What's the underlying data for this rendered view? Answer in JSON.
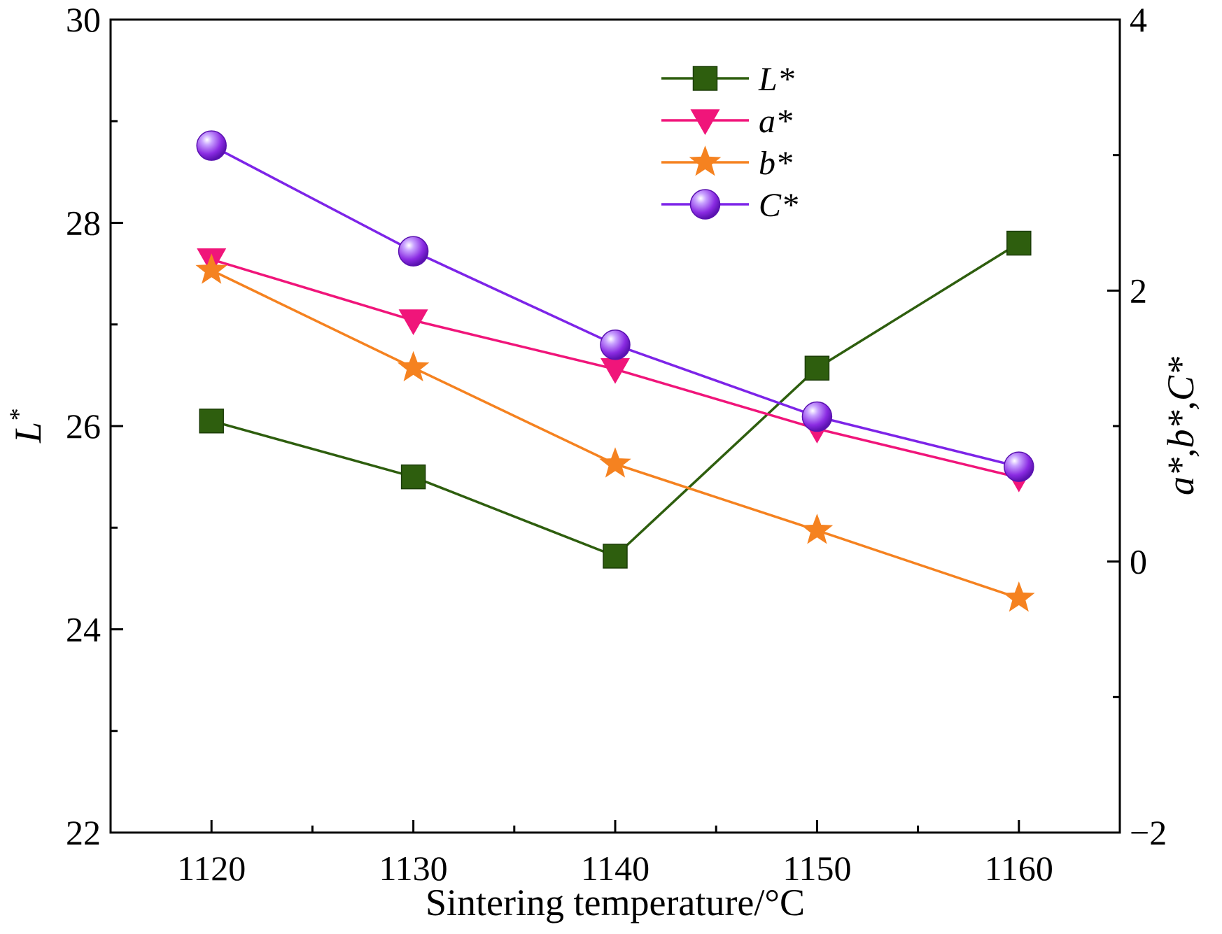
{
  "chart_data": {
    "type": "line",
    "xlabel": "Sintering temperature/°C",
    "ylabel_left": "L",
    "ylabel_left_sup": "*",
    "ylabel_right": "a*,b*,C*",
    "x": [
      1120,
      1130,
      1140,
      1150,
      1160
    ],
    "xlim": [
      1115,
      1165
    ],
    "x_ticks": [
      "1120",
      "1130",
      "1140",
      "1150",
      "1160"
    ],
    "ylim_left": [
      22,
      30
    ],
    "y_ticks_left": [
      "22",
      "24",
      "26",
      "28",
      "30"
    ],
    "ylim_right": [
      -2,
      4
    ],
    "y_ticks_right": [
      "−2",
      "0",
      "2",
      "4"
    ],
    "grid": false,
    "legend_position": "top-right",
    "series": [
      {
        "name": "L*",
        "axis": "left",
        "marker": "square",
        "color": "#2e5e0e",
        "values": [
          26.05,
          25.5,
          24.72,
          26.57,
          27.8
        ]
      },
      {
        "name": "a*",
        "axis": "right",
        "marker": "triangle-down",
        "color": "#f0157a",
        "values": [
          2.23,
          1.78,
          1.42,
          0.98,
          0.62
        ]
      },
      {
        "name": "b*",
        "axis": "right",
        "marker": "star",
        "color": "#f58220",
        "values": [
          2.15,
          1.43,
          0.72,
          0.23,
          -0.27
        ]
      },
      {
        "name": "C*",
        "axis": "right",
        "marker": "sphere",
        "color": "#7d24e8",
        "values": [
          3.07,
          2.29,
          1.6,
          1.07,
          0.7
        ]
      }
    ]
  }
}
